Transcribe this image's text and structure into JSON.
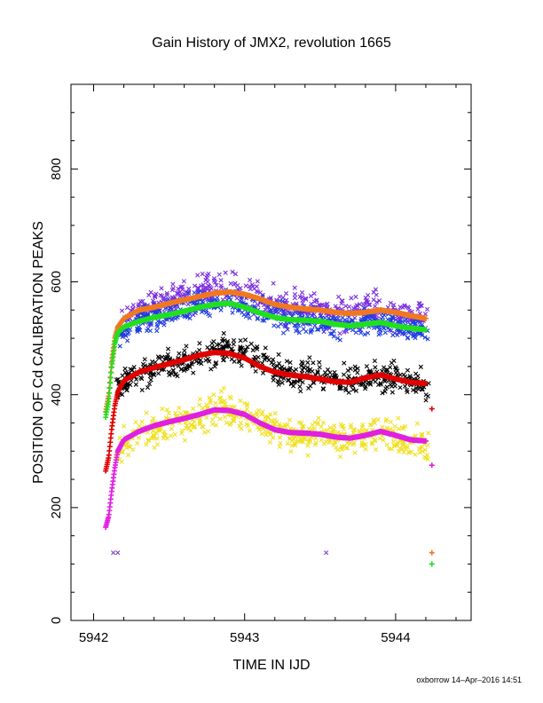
{
  "chart_data": {
    "type": "scatter",
    "title": "Gain History of JMX2, revolution 1665",
    "xlabel": "TIME IN IJD",
    "ylabel": "POSITION OF Cd CALIBRATION PEAKS",
    "xlim": [
      5941.85,
      5944.5
    ],
    "ylim": [
      0,
      950
    ],
    "xticks": [
      "5942",
      "5943",
      "5944"
    ],
    "yticks": [
      "0",
      "200",
      "400",
      "600",
      "800"
    ],
    "grid": false,
    "credit": "oxborrow 14–Apr–2016 14:51",
    "series": [
      {
        "marker": "x",
        "color": "#7a2ee0",
        "x": [
          5942.17,
          5942.25,
          5942.35,
          5942.45,
          5942.55,
          5942.65,
          5942.75,
          5942.85,
          5942.95,
          5943.05,
          5943.15,
          5943.25,
          5943.35,
          5943.45,
          5943.55,
          5943.65,
          5943.75,
          5943.85,
          5943.95,
          5944.05,
          5944.15,
          5944.22
        ],
        "values": [
          520,
          545,
          555,
          560,
          570,
          575,
          585,
          590,
          585,
          575,
          565,
          560,
          555,
          550,
          545,
          540,
          550,
          555,
          545,
          540,
          535,
          530
        ],
        "spread": 22
      },
      {
        "marker": "x",
        "color": "#1f3ee0",
        "x": [
          5942.17,
          5942.25,
          5942.35,
          5942.45,
          5942.55,
          5942.65,
          5942.75,
          5942.85,
          5942.95,
          5943.05,
          5943.15,
          5943.25,
          5943.35,
          5943.45,
          5943.55,
          5943.65,
          5943.75,
          5943.85,
          5943.95,
          5944.05,
          5944.15,
          5944.22
        ],
        "values": [
          505,
          525,
          535,
          540,
          550,
          555,
          560,
          565,
          560,
          550,
          545,
          535,
          530,
          530,
          525,
          520,
          525,
          530,
          525,
          520,
          515,
          510
        ],
        "spread": 18
      },
      {
        "marker": "x",
        "color": "#000000",
        "x": [
          5942.15,
          5942.25,
          5942.35,
          5942.45,
          5942.55,
          5942.65,
          5942.75,
          5942.85,
          5942.95,
          5943.05,
          5943.15,
          5943.25,
          5943.35,
          5943.45,
          5943.55,
          5943.65,
          5943.75,
          5943.85,
          5943.95,
          5944.05,
          5944.15,
          5944.22
        ],
        "values": [
          410,
          430,
          440,
          450,
          455,
          460,
          470,
          480,
          475,
          465,
          450,
          440,
          435,
          435,
          430,
          425,
          430,
          440,
          435,
          425,
          420,
          410
        ],
        "spread": 20
      },
      {
        "marker": "x",
        "color": "#f0e020",
        "x": [
          5942.15,
          5942.25,
          5942.35,
          5942.45,
          5942.55,
          5942.65,
          5942.75,
          5942.85,
          5942.95,
          5943.05,
          5943.15,
          5943.25,
          5943.35,
          5943.45,
          5943.55,
          5943.65,
          5943.75,
          5943.85,
          5943.95,
          5944.05,
          5944.15,
          5944.22
        ],
        "values": [
          300,
          320,
          335,
          345,
          350,
          355,
          365,
          375,
          370,
          360,
          345,
          335,
          330,
          330,
          325,
          320,
          325,
          335,
          330,
          320,
          315,
          305
        ],
        "spread": 22
      },
      {
        "marker": "+",
        "color": "#f07820",
        "x": [
          5942.08,
          5942.1,
          5942.12,
          5942.14,
          5942.16,
          5942.2,
          5942.3,
          5942.4,
          5942.5,
          5942.6,
          5942.7,
          5942.8,
          5942.9,
          5943.0,
          5943.1,
          5943.2,
          5943.3,
          5943.4,
          5943.5,
          5943.6,
          5943.7,
          5943.8,
          5943.9,
          5944.0,
          5944.1,
          5944.2,
          5944.24
        ],
        "values": [
          370,
          400,
          460,
          500,
          520,
          535,
          550,
          555,
          562,
          568,
          574,
          580,
          582,
          578,
          570,
          560,
          555,
          552,
          550,
          546,
          544,
          546,
          550,
          546,
          540,
          535,
          120
        ]
      },
      {
        "marker": "+",
        "color": "#20e020",
        "x": [
          5942.08,
          5942.1,
          5942.12,
          5942.14,
          5942.16,
          5942.2,
          5942.3,
          5942.4,
          5942.5,
          5942.6,
          5942.7,
          5942.8,
          5942.9,
          5943.0,
          5943.1,
          5943.2,
          5943.3,
          5943.4,
          5943.5,
          5943.6,
          5943.7,
          5943.8,
          5943.9,
          5944.0,
          5944.1,
          5944.2,
          5944.24
        ],
        "values": [
          360,
          390,
          450,
          490,
          510,
          520,
          530,
          537,
          542,
          548,
          555,
          560,
          562,
          555,
          545,
          537,
          533,
          532,
          530,
          525,
          522,
          525,
          528,
          522,
          518,
          515,
          100
        ]
      },
      {
        "marker": "+",
        "color": "#e00000",
        "x": [
          5942.08,
          5942.1,
          5942.12,
          5942.14,
          5942.16,
          5942.2,
          5942.3,
          5942.4,
          5942.5,
          5942.6,
          5942.7,
          5942.8,
          5942.9,
          5943.0,
          5943.1,
          5943.2,
          5943.3,
          5943.4,
          5943.5,
          5943.6,
          5943.7,
          5943.8,
          5943.9,
          5944.0,
          5944.1,
          5944.2,
          5944.24
        ],
        "values": [
          265,
          290,
          340,
          380,
          405,
          425,
          440,
          448,
          455,
          462,
          470,
          475,
          473,
          465,
          450,
          440,
          435,
          432,
          428,
          423,
          422,
          430,
          435,
          428,
          422,
          420,
          375
        ]
      },
      {
        "marker": "+",
        "color": "#e020e0",
        "x": [
          5942.08,
          5942.1,
          5942.12,
          5942.14,
          5942.16,
          5942.2,
          5942.3,
          5942.4,
          5942.5,
          5942.6,
          5942.7,
          5942.8,
          5942.9,
          5943.0,
          5943.1,
          5943.2,
          5943.3,
          5943.4,
          5943.5,
          5943.6,
          5943.7,
          5943.8,
          5943.9,
          5944.0,
          5944.1,
          5944.2,
          5944.24
        ],
        "values": [
          165,
          185,
          230,
          270,
          300,
          320,
          335,
          345,
          352,
          358,
          365,
          373,
          372,
          365,
          350,
          338,
          333,
          332,
          330,
          325,
          323,
          328,
          335,
          328,
          320,
          318,
          275
        ]
      },
      {
        "marker": "x",
        "color": "#8040c0",
        "x": [
          5942.13,
          5942.16,
          5943.54
        ],
        "values": [
          120,
          120,
          120
        ]
      }
    ]
  }
}
